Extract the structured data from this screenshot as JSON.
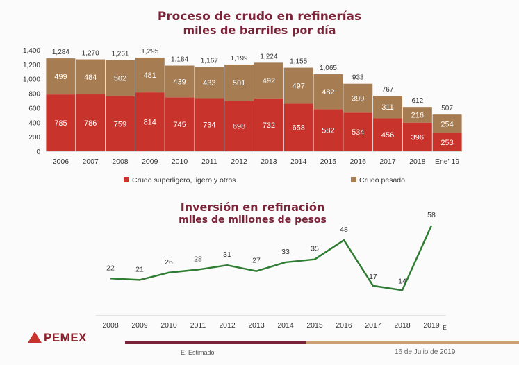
{
  "header": {
    "title_line1": "Proceso de crudo en refinerías",
    "title_line2": "miles de barriles por día"
  },
  "chart_data": [
    {
      "type": "bar",
      "stacked": true,
      "title": "Proceso de crudo en refinerías miles de barriles por día",
      "categories": [
        "2006",
        "2007",
        "2008",
        "2009",
        "2010",
        "2011",
        "2012",
        "2013",
        "2014",
        "2015",
        "2016",
        "2017",
        "2018",
        "Ene' 19"
      ],
      "series": [
        {
          "name": "Crudo superligero, ligero y otros",
          "color": "#c8332b",
          "values": [
            785,
            786,
            759,
            814,
            745,
            734,
            698,
            732,
            658,
            582,
            534,
            456,
            396,
            253
          ]
        },
        {
          "name": "Crudo pesado",
          "color": "#a67c52",
          "values": [
            499,
            484,
            502,
            481,
            439,
            433,
            501,
            492,
            497,
            482,
            399,
            311,
            216,
            254
          ]
        }
      ],
      "totals": [
        1284,
        1270,
        1261,
        1295,
        1184,
        1167,
        1199,
        1224,
        1155,
        1065,
        933,
        767,
        612,
        507
      ],
      "total_labels": [
        "1,284",
        "1,270",
        "1,261",
        "1,295",
        "1,184",
        "1,167",
        "1,199",
        "1,224",
        "1,155",
        "1,065",
        "933",
        "767",
        "612",
        "507"
      ],
      "y_ticks": [
        "0",
        "200",
        "400",
        "600",
        "800",
        "1,000",
        "1,200",
        "1,400"
      ],
      "ylim": [
        0,
        1400
      ],
      "legend": "bottom"
    },
    {
      "type": "line",
      "title": "Inversión en refinación miles de millones de pesos",
      "categories": [
        "2008",
        "2009",
        "2010",
        "2011",
        "2012",
        "2013",
        "2014",
        "2015",
        "2016",
        "2017",
        "2018",
        "2019"
      ],
      "values": [
        22,
        21,
        26,
        28,
        31,
        27,
        33,
        35,
        48,
        17,
        14,
        58
      ],
      "color": "#2e7d32",
      "ylim": [
        0,
        65
      ],
      "last_category_suffix": "E"
    }
  ],
  "line_section": {
    "title_line1": "Inversión en refinación",
    "title_line2": "miles de millones de pesos"
  },
  "footer": {
    "logo_text": "PEMEX",
    "note": "E: Estimado",
    "date": "16 de Julio de 2019"
  }
}
